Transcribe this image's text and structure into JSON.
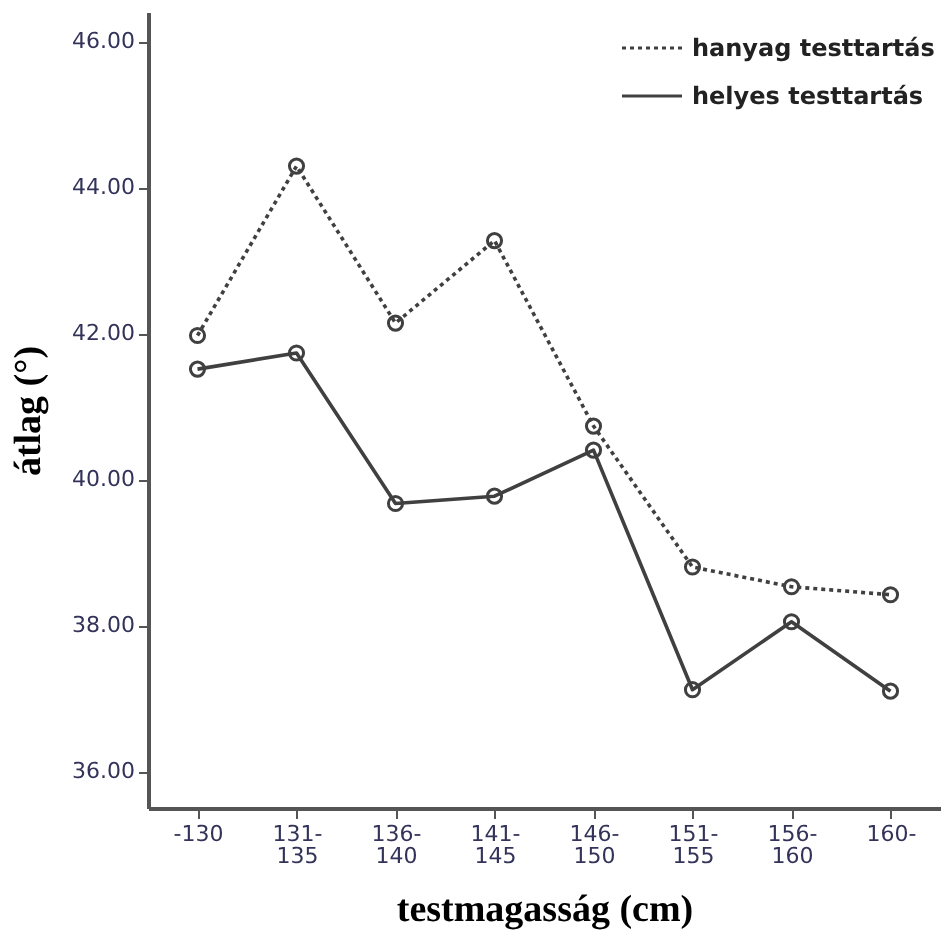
{
  "chart_data": {
    "type": "line",
    "xlabel": "testmagasság (cm)",
    "ylabel": "átlag (°)",
    "categories": [
      "-130",
      "131-135",
      "136-140",
      "141-145",
      "146-150",
      "151-155",
      "156-160",
      "160-"
    ],
    "series": [
      {
        "name": "hanyag testtartás",
        "color": "#404040",
        "line_style": "dotted",
        "values": [
          41.97,
          44.29,
          42.14,
          43.27,
          40.73,
          38.8,
          38.53,
          38.42
        ]
      },
      {
        "name": "helyes testtartás",
        "color": "#404040",
        "line_style": "solid",
        "values": [
          41.51,
          41.73,
          39.67,
          39.77,
          40.4,
          37.12,
          38.05,
          37.1
        ]
      }
    ],
    "ylim": [
      35.5,
      46.4
    ],
    "yticks": [
      {
        "value": 36,
        "label": "36.00"
      },
      {
        "value": 38,
        "label": "38.00"
      },
      {
        "value": 40,
        "label": "40.00"
      },
      {
        "value": 42,
        "label": "42.00"
      },
      {
        "value": 44,
        "label": "44.00"
      },
      {
        "value": 46,
        "label": "46.00"
      }
    ],
    "marker": "circle",
    "legend": "top right",
    "grid": false
  }
}
